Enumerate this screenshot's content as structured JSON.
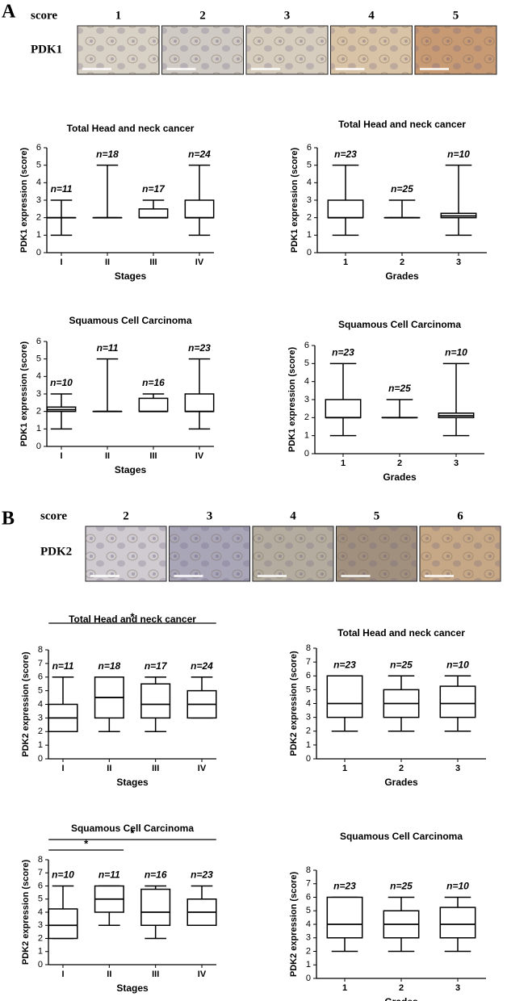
{
  "figure": {
    "panels": [
      {
        "label": "A",
        "row_label": "score",
        "marker": "PDK1",
        "scores": [
          "1",
          "2",
          "3",
          "4",
          "5"
        ]
      },
      {
        "label": "B",
        "row_label": "score",
        "marker": "PDK2",
        "scores": [
          "2",
          "3",
          "4",
          "5",
          "6"
        ]
      }
    ]
  },
  "chart_data": [
    {
      "type": "box",
      "title": "Total Head and neck cancer",
      "ylabel": "PDK1 expression (score)",
      "xlabel": "Stages",
      "categories": [
        "I",
        "II",
        "III",
        "IV"
      ],
      "n_labels": [
        "n=11",
        "n=18",
        "n=17",
        "n=24"
      ],
      "boxes": [
        {
          "min": 1,
          "q1": 2,
          "median": 2,
          "q3": 2,
          "max": 3
        },
        {
          "min": 2,
          "q1": 2,
          "median": 2,
          "q3": 2,
          "max": 5
        },
        {
          "min": 2,
          "q1": 2,
          "median": 2,
          "q3": 2.5,
          "max": 3
        },
        {
          "min": 1,
          "q1": 2,
          "median": 2,
          "q3": 3,
          "max": 5
        }
      ],
      "ylim": [
        0,
        6
      ],
      "yticks": [
        0,
        1,
        2,
        3,
        4,
        5,
        6
      ],
      "significance": []
    },
    {
      "type": "box",
      "title": "Total Head and neck cancer",
      "ylabel": "PDK1 expression (score)",
      "xlabel": "Grades",
      "categories": [
        "1",
        "2",
        "3"
      ],
      "n_labels": [
        "n=23",
        "n=25",
        "n=10"
      ],
      "boxes": [
        {
          "min": 1,
          "q1": 2,
          "median": 2,
          "q3": 3,
          "max": 5
        },
        {
          "min": 2,
          "q1": 2,
          "median": 2,
          "q3": 2,
          "max": 3
        },
        {
          "min": 1,
          "q1": 2,
          "median": 2.1,
          "q3": 2.25,
          "max": 5
        }
      ],
      "ylim": [
        0,
        6
      ],
      "yticks": [
        0,
        1,
        2,
        3,
        4,
        5,
        6
      ],
      "significance": []
    },
    {
      "type": "box",
      "title": "Squamous Cell Carcinoma",
      "ylabel": "PDK1 expression (score)",
      "xlabel": "Stages",
      "categories": [
        "I",
        "II",
        "III",
        "IV"
      ],
      "n_labels": [
        "n=10",
        "n=11",
        "n=16",
        "n=23"
      ],
      "boxes": [
        {
          "min": 1,
          "q1": 2,
          "median": 2.1,
          "q3": 2.25,
          "max": 3
        },
        {
          "min": 2,
          "q1": 2,
          "median": 2,
          "q3": 2,
          "max": 5
        },
        {
          "min": 2,
          "q1": 2,
          "median": 2,
          "q3": 2.75,
          "max": 3
        },
        {
          "min": 1,
          "q1": 2,
          "median": 2,
          "q3": 3,
          "max": 5
        }
      ],
      "ylim": [
        0,
        6
      ],
      "yticks": [
        0,
        1,
        2,
        3,
        4,
        5,
        6
      ],
      "significance": []
    },
    {
      "type": "box",
      "title": "Squamous Cell Carcinoma",
      "ylabel": "PDK1 expression (score)",
      "xlabel": "Grades",
      "categories": [
        "1",
        "2",
        "3"
      ],
      "n_labels": [
        "n=23",
        "n=25",
        "n=10"
      ],
      "boxes": [
        {
          "min": 1,
          "q1": 2,
          "median": 2,
          "q3": 3,
          "max": 5
        },
        {
          "min": 2,
          "q1": 2,
          "median": 2,
          "q3": 2,
          "max": 3
        },
        {
          "min": 1,
          "q1": 2,
          "median": 2.1,
          "q3": 2.25,
          "max": 5
        }
      ],
      "ylim": [
        0,
        6
      ],
      "yticks": [
        0,
        1,
        2,
        3,
        4,
        5,
        6
      ],
      "significance": []
    },
    {
      "type": "box",
      "title": "Total Head and neck cancer",
      "ylabel": "PDK2 expression (score)",
      "xlabel": "Stages",
      "categories": [
        "I",
        "II",
        "III",
        "IV"
      ],
      "n_labels": [
        "n=11",
        "n=18",
        "n=17",
        "n=24"
      ],
      "boxes": [
        {
          "min": 2,
          "q1": 2,
          "median": 3,
          "q3": 4,
          "max": 6
        },
        {
          "min": 2,
          "q1": 3,
          "median": 4.5,
          "q3": 6,
          "max": 6
        },
        {
          "min": 2,
          "q1": 3,
          "median": 4,
          "q3": 5.5,
          "max": 6
        },
        {
          "min": 3,
          "q1": 3,
          "median": 4,
          "q3": 5,
          "max": 6
        }
      ],
      "ylim": [
        0,
        8
      ],
      "yticks": [
        0,
        1,
        2,
        3,
        4,
        5,
        6,
        7,
        8
      ],
      "significance": [
        {
          "label": "*",
          "groups": [
            "I",
            "IV"
          ]
        }
      ]
    },
    {
      "type": "box",
      "title": "Total Head and neck cancer",
      "ylabel": "PDK2 expression (score)",
      "xlabel": "Grades",
      "categories": [
        "1",
        "2",
        "3"
      ],
      "n_labels": [
        "n=23",
        "n=25",
        "n=10"
      ],
      "boxes": [
        {
          "min": 2,
          "q1": 3,
          "median": 4,
          "q3": 6,
          "max": 6
        },
        {
          "min": 2,
          "q1": 3,
          "median": 4,
          "q3": 5,
          "max": 6
        },
        {
          "min": 2,
          "q1": 3,
          "median": 4,
          "q3": 5.25,
          "max": 6
        }
      ],
      "ylim": [
        0,
        8
      ],
      "yticks": [
        0,
        1,
        2,
        3,
        4,
        5,
        6,
        7,
        8
      ],
      "significance": []
    },
    {
      "type": "box",
      "title": "Squamous Cell Carcinoma",
      "ylabel": "PDK2 expression (score)",
      "xlabel": "Stages",
      "categories": [
        "I",
        "II",
        "III",
        "IV"
      ],
      "n_labels": [
        "n=10",
        "n=11",
        "n=16",
        "n=23"
      ],
      "boxes": [
        {
          "min": 2,
          "q1": 2,
          "median": 3,
          "q3": 4.25,
          "max": 6
        },
        {
          "min": 3,
          "q1": 4,
          "median": 5,
          "q3": 6,
          "max": 6
        },
        {
          "min": 2,
          "q1": 3,
          "median": 4,
          "q3": 5.75,
          "max": 6
        },
        {
          "min": 3,
          "q1": 3,
          "median": 4,
          "q3": 5,
          "max": 6
        }
      ],
      "ylim": [
        0,
        8
      ],
      "yticks": [
        0,
        1,
        2,
        3,
        4,
        5,
        6,
        7,
        8
      ],
      "significance": [
        {
          "label": "*",
          "groups": [
            "I",
            "II"
          ]
        },
        {
          "label": "*",
          "groups": [
            "I",
            "IV"
          ]
        }
      ]
    },
    {
      "type": "box",
      "title": "Squamous Cell Carcinoma",
      "ylabel": "PDK2 expression (score)",
      "xlabel": "Grades",
      "categories": [
        "1",
        "2",
        "3"
      ],
      "n_labels": [
        "n=23",
        "n=25",
        "n=10"
      ],
      "boxes": [
        {
          "min": 2,
          "q1": 3,
          "median": 4,
          "q3": 6,
          "max": 6
        },
        {
          "min": 2,
          "q1": 3,
          "median": 4,
          "q3": 5,
          "max": 6
        },
        {
          "min": 2,
          "q1": 3,
          "median": 4,
          "q3": 5.25,
          "max": 6
        }
      ],
      "ylim": [
        0,
        8
      ],
      "yticks": [
        0,
        1,
        2,
        3,
        4,
        5,
        6,
        7,
        8
      ],
      "significance": []
    }
  ]
}
